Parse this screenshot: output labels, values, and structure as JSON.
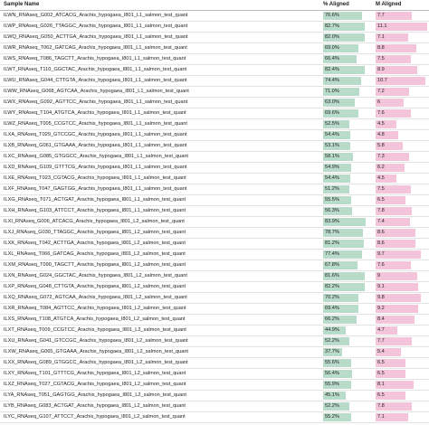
{
  "table": {
    "headers": [
      "Sample Name",
      "% Aligned",
      "M Aligned"
    ],
    "rows": [
      {
        "sample": "ILWN_RNAseq_G002_ATCACG_Arachis_hypogaea_I801_L1_salmon_test_quant",
        "pct_aligned": {
          "value": 76.6,
          "label": "76.6%"
        },
        "m_aligned": 7.7
      },
      {
        "sample": "ILWP_RNAseq_G026_TTAGGC_Arachis_hypogaea_I801_L1_salmon_test_quant",
        "pct_aligned": {
          "value": 82.7,
          "label": "82.7%"
        },
        "m_aligned": 11.1
      },
      {
        "sample": "ILWQ_RNAseq_G050_ACTTGA_Arachis_hypogaea_I801_L1_salmon_test_quant",
        "pct_aligned": {
          "value": 82.0,
          "label": "82.0%"
        },
        "m_aligned": 7.1
      },
      {
        "sample": "ILWR_RNAseq_T062_GATCAG_Arachis_hypogaea_I801_L1_salmon_test_quant",
        "pct_aligned": {
          "value": 69.0,
          "label": "69.0%"
        },
        "m_aligned": 8.8
      },
      {
        "sample": "ILWS_RNAseq_T086_TAGCTT_Arachis_hypogaea_I801_L1_salmon_test_quant",
        "pct_aligned": {
          "value": 66.4,
          "label": "66.4%"
        },
        "m_aligned": 7.5
      },
      {
        "sample": "ILWT_RNAseq_T110_GGCTAC_Arachis_hypogaea_I801_L1_salmon_test_quant",
        "pct_aligned": {
          "value": 82.4,
          "label": "82.4%"
        },
        "m_aligned": 8.9
      },
      {
        "sample": "ILWU_RNAseq_G044_CTTGTA_Arachis_hypogaea_I801_L1_salmon_test_quant",
        "pct_aligned": {
          "value": 74.4,
          "label": "74.4%"
        },
        "m_aligned": 10.7
      },
      {
        "sample": "ILWW_RNAseq_G068_AGTCAA_Arachis_hypogaea_I801_L1_salmon_test_quant",
        "pct_aligned": {
          "value": 71.0,
          "label": "71.0%"
        },
        "m_aligned": 7.2
      },
      {
        "sample": "ILWX_RNAseq_G092_AGTTCC_Arachis_hypogaea_I801_L1_salmon_test_quant",
        "pct_aligned": {
          "value": 63.0,
          "label": "63.0%"
        },
        "m_aligned": 6.0
      },
      {
        "sample": "ILWY_RNAseq_T104_ATGTCA_Arachis_hypogaea_I801_L1_salmon_test_quant",
        "pct_aligned": {
          "value": 69.6,
          "label": "69.6%"
        },
        "m_aligned": 7.6
      },
      {
        "sample": "ILWZ_RNAseq_T005_CCGTCC_Arachis_hypogaea_I801_L1_salmon_test_quant",
        "pct_aligned": {
          "value": 52.5,
          "label": "52.5%"
        },
        "m_aligned": 4.5
      },
      {
        "sample": "ILXA_RNAseq_T029_GTCCGC_Arachis_hypogaea_I801_L1_salmon_test_quant",
        "pct_aligned": {
          "value": 54.4,
          "label": "54.4%"
        },
        "m_aligned": 4.8
      },
      {
        "sample": "ILXB_RNAseq_G061_GTGAAA_Arachis_hypogaea_I801_L1_salmon_test_quant",
        "pct_aligned": {
          "value": 53.1,
          "label": "53.1%"
        },
        "m_aligned": 5.8
      },
      {
        "sample": "ILXC_RNAseq_G085_GTGGCC_Arachis_hypogaea_I801_L1_salmon_test_quant",
        "pct_aligned": {
          "value": 58.1,
          "label": "58.1%"
        },
        "m_aligned": 7.3
      },
      {
        "sample": "ILXD_RNAseq_G109_GTTTCG_Arachis_hypogaea_I801_L1_salmon_test_quant",
        "pct_aligned": {
          "value": 54.9,
          "label": "54.9%"
        },
        "m_aligned": 6.2
      },
      {
        "sample": "ILXE_RNAseq_T023_CGTACG_Arachis_hypogaea_I801_L1_salmon_test_quant",
        "pct_aligned": {
          "value": 54.4,
          "label": "54.4%"
        },
        "m_aligned": 4.5
      },
      {
        "sample": "ILXF_RNAseq_T047_GAGTGG_Arachis_hypogaea_I801_L1_salmon_test_quant",
        "pct_aligned": {
          "value": 51.2,
          "label": "51.2%"
        },
        "m_aligned": 7.5
      },
      {
        "sample": "ILXG_RNAseq_T071_ACTGAT_Arachis_hypogaea_I801_L1_salmon_test_quant",
        "pct_aligned": {
          "value": 55.5,
          "label": "55.5%"
        },
        "m_aligned": 6.5
      },
      {
        "sample": "ILXH_RNAseq_G103_ATTCCT_Arachis_hypogaea_I801_L1_salmon_test_quant",
        "pct_aligned": {
          "value": 56.3,
          "label": "56.3%"
        },
        "m_aligned": 7.8
      },
      {
        "sample": "ILXI_RNAseq_G006_ATCACG_Arachis_hypogaea_I801_L2_salmon_test_quant",
        "pct_aligned": {
          "value": 83.9,
          "label": "83.9%"
        },
        "m_aligned": 7.4
      },
      {
        "sample": "ILXJ_RNAseq_G030_TTAGGC_Arachis_hypogaea_I801_L2_salmon_test_quant",
        "pct_aligned": {
          "value": 78.7,
          "label": "78.7%"
        },
        "m_aligned": 8.6
      },
      {
        "sample": "ILXK_RNAseq_T042_ACTTGA_Arachis_hypogaea_I801_L2_salmon_test_quant",
        "pct_aligned": {
          "value": 81.2,
          "label": "81.2%"
        },
        "m_aligned": 8.6
      },
      {
        "sample": "ILXL_RNAseq_T066_GATCAG_Arachis_hypogaea_I801_L2_salmon_test_quant",
        "pct_aligned": {
          "value": 77.4,
          "label": "77.4%"
        },
        "m_aligned": 9.7
      },
      {
        "sample": "ILXM_RNAseq_T090_TAGCTT_Arachis_hypogaea_I801_L2_salmon_test_quant",
        "pct_aligned": {
          "value": 67.8,
          "label": "67.8%"
        },
        "m_aligned": 7.6
      },
      {
        "sample": "ILXN_RNAseq_G024_GGCTAC_Arachis_hypogaea_I801_L2_salmon_test_quant",
        "pct_aligned": {
          "value": 81.6,
          "label": "81.6%"
        },
        "m_aligned": 9.0
      },
      {
        "sample": "ILXP_RNAseq_G048_CTTGTA_Arachis_hypogaea_I801_L2_salmon_test_quant",
        "pct_aligned": {
          "value": 82.2,
          "label": "82.2%"
        },
        "m_aligned": 9.1
      },
      {
        "sample": "ILXQ_RNAseq_G072_AGTCAA_Arachis_hypogaea_I801_L2_salmon_test_quant",
        "pct_aligned": {
          "value": 70.2,
          "label": "70.2%"
        },
        "m_aligned": 9.8
      },
      {
        "sample": "ILXR_RNAseq_T084_AGTTCC_Arachis_hypogaea_I801_L2_salmon_test_quant",
        "pct_aligned": {
          "value": 69.4,
          "label": "69.4%"
        },
        "m_aligned": 9.2
      },
      {
        "sample": "ILXS_RNAseq_T108_ATGTCA_Arachis_hypogaea_I801_L2_salmon_test_quant",
        "pct_aligned": {
          "value": 66.2,
          "label": "66.2%"
        },
        "m_aligned": 8.4
      },
      {
        "sample": "ILXT_RNAseq_T009_CCGTCC_Arachis_hypogaea_I801_L2_salmon_test_quant",
        "pct_aligned": {
          "value": 44.9,
          "label": "44.9%"
        },
        "m_aligned": 4.7
      },
      {
        "sample": "ILXU_RNAseq_G041_GTCCGC_Arachis_hypogaea_I801_L2_salmon_test_quant",
        "pct_aligned": {
          "value": 52.2,
          "label": "52.2%"
        },
        "m_aligned": 7.7
      },
      {
        "sample": "ILXW_RNAseq_G065_GTGAAA_Arachis_hypogaea_I801_L2_salmon_test_quant",
        "pct_aligned": {
          "value": 37.7,
          "label": "37.7%"
        },
        "m_aligned": 5.4
      },
      {
        "sample": "ILXX_RNAseq_G089_GTGGCC_Arachis_hypogaea_I801_L2_salmon_test_quant",
        "pct_aligned": {
          "value": 55.6,
          "label": "55.6%"
        },
        "m_aligned": 6.5
      },
      {
        "sample": "ILXY_RNAseq_T101_GTTTCG_Arachis_hypogaea_I801_L2_salmon_test_quant",
        "pct_aligned": {
          "value": 56.4,
          "label": "56.4%"
        },
        "m_aligned": 6.5
      },
      {
        "sample": "ILXZ_RNAseq_T027_CGTACG_Arachis_hypogaea_I801_L2_salmon_test_quant",
        "pct_aligned": {
          "value": 55.9,
          "label": "55.9%"
        },
        "m_aligned": 8.1
      },
      {
        "sample": "ILYA_RNAseq_T051_GAGTGG_Arachis_hypogaea_I801_L2_salmon_test_quant",
        "pct_aligned": {
          "value": 45.1,
          "label": "45.1%"
        },
        "m_aligned": 6.5
      },
      {
        "sample": "ILYB_RNAseq_G083_ACTGAT_Arachis_hypogaea_I801_L2_salmon_test_quant",
        "pct_aligned": {
          "value": 52.2,
          "label": "52.2%"
        },
        "m_aligned": 7.8
      },
      {
        "sample": "ILYC_RNAseq_G107_ATTCCT_Arachis_hypogaea_I801_L2_salmon_test_quant",
        "pct_aligned": {
          "value": 55.2,
          "label": "55.2%"
        },
        "m_aligned": 7.1
      }
    ]
  }
}
